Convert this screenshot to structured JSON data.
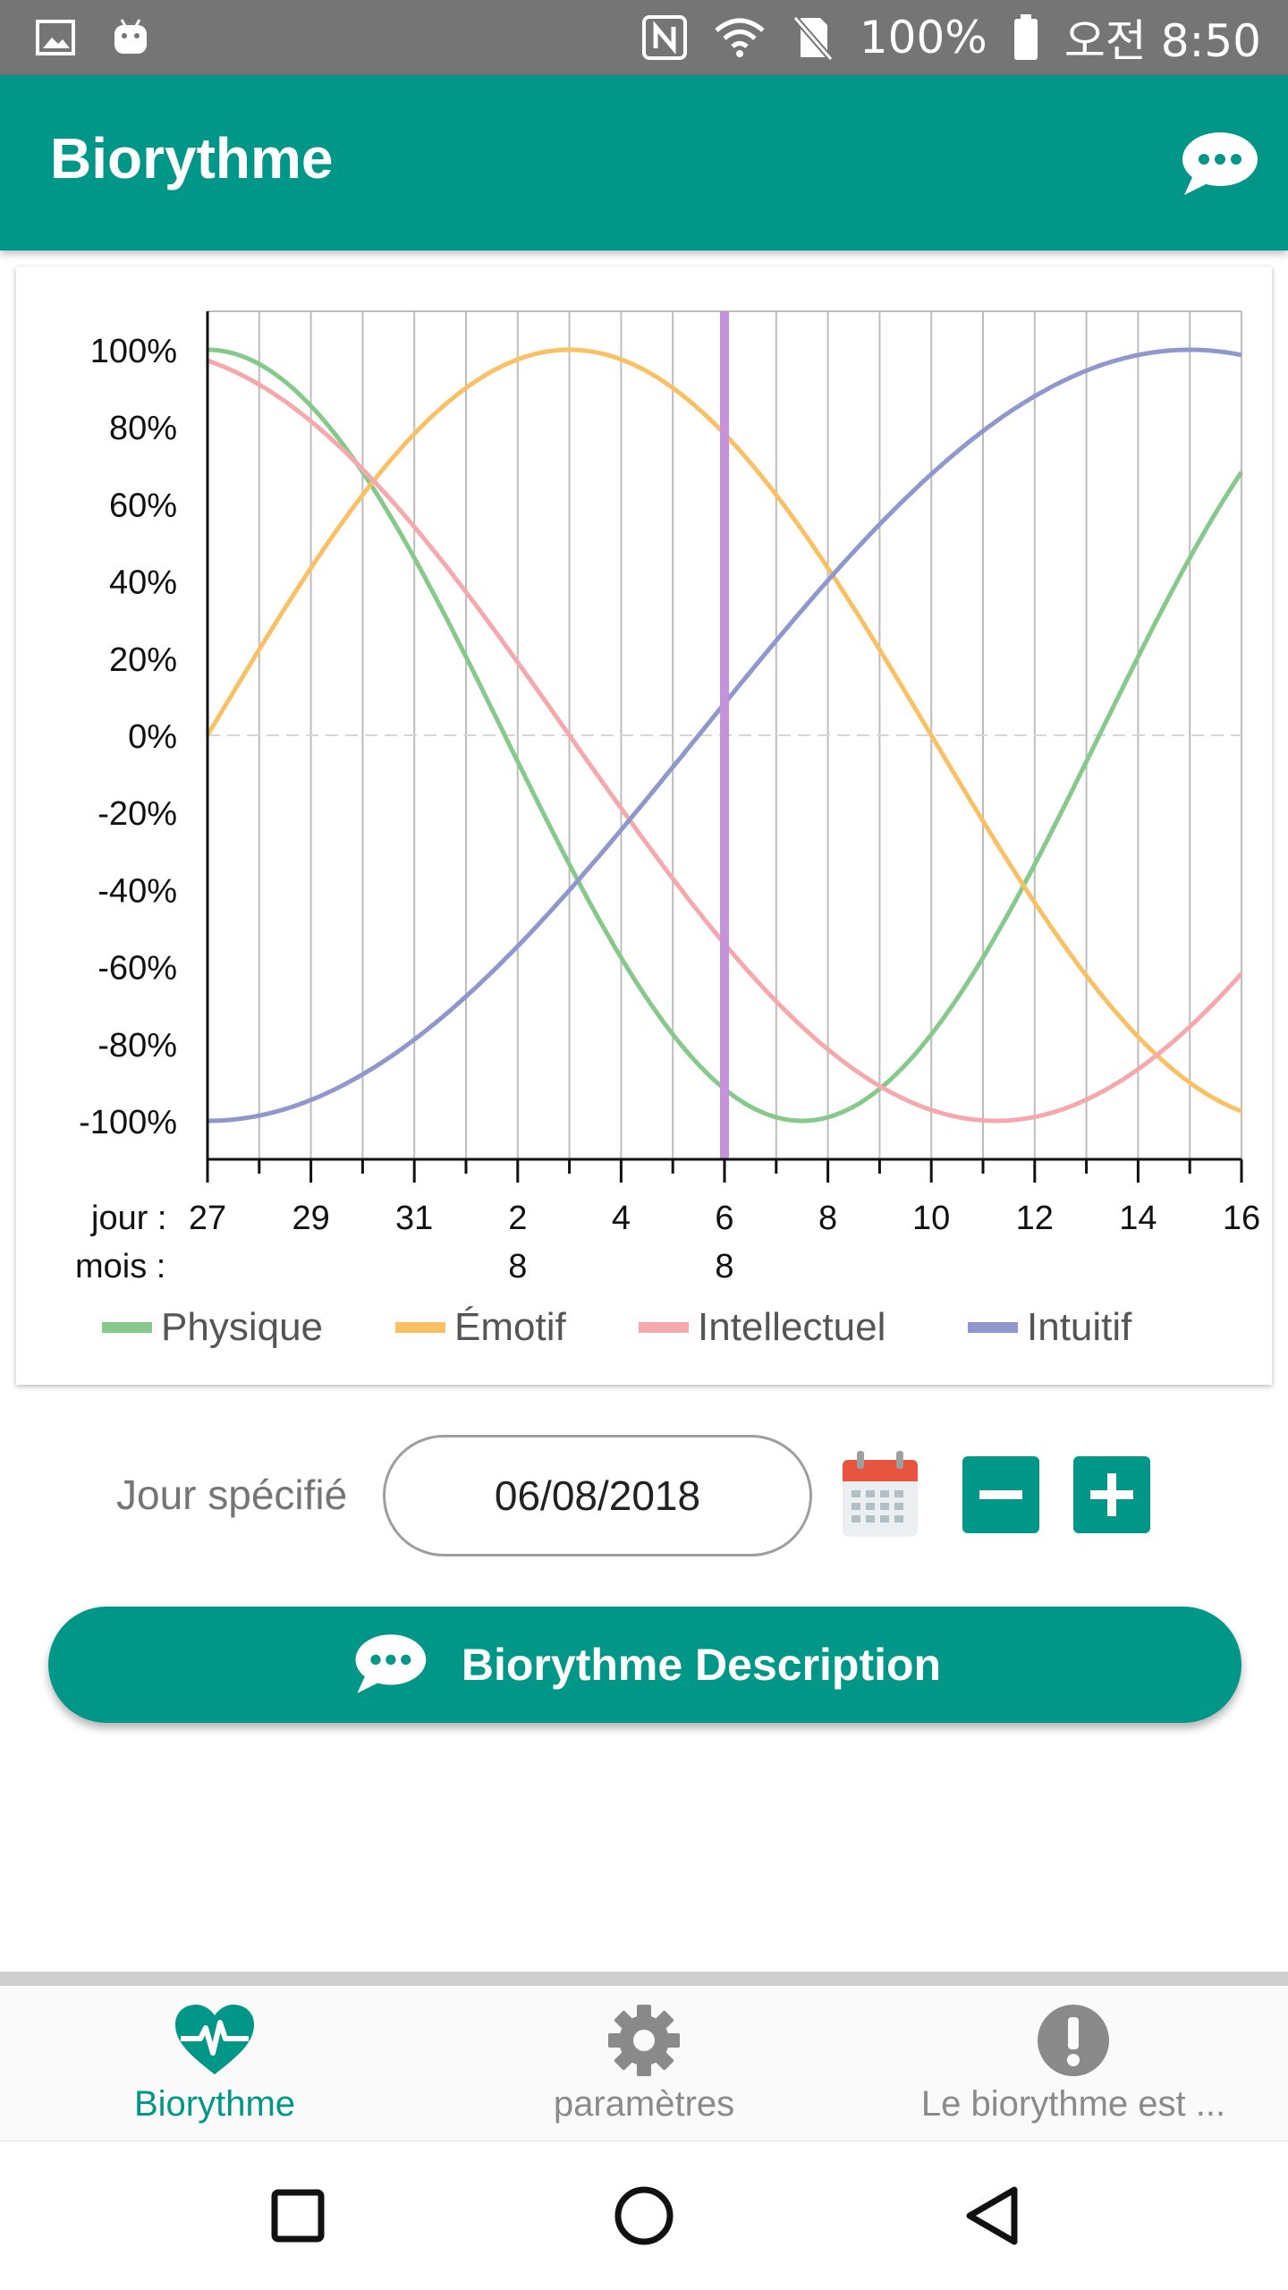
{
  "status_bar": {
    "battery": "100%",
    "time": "오전 8:50"
  },
  "app_bar": {
    "title": "Biorythme"
  },
  "chart_data": {
    "type": "line",
    "x": [
      27,
      28,
      29,
      30,
      31,
      1,
      2,
      3,
      4,
      5,
      6,
      7,
      8,
      9,
      10,
      11,
      12,
      13,
      14,
      15,
      16
    ],
    "x_tick_labels": [
      "27",
      "29",
      "31",
      "2",
      "4",
      "6",
      "8",
      "10",
      "12",
      "14",
      "16"
    ],
    "x_prefix_day": "jour :",
    "x_prefix_month": "mois :",
    "month_labels": [
      {
        "day": "2",
        "month": "8"
      },
      {
        "day": "6",
        "month": "8"
      }
    ],
    "y_ticks": [
      "100%",
      "80%",
      "60%",
      "40%",
      "20%",
      "0%",
      "-20%",
      "-40%",
      "-60%",
      "-80%",
      "-100%"
    ],
    "ylim": [
      -100,
      100
    ],
    "grid": "vertical",
    "marker_day": "6",
    "series": [
      {
        "name": "Physique",
        "color": "#86c98a",
        "period": 23,
        "phase_offset_days": 5.75
      },
      {
        "name": "Émotif",
        "color": "#f8c165",
        "period": 28,
        "phase_offset_days": 0
      },
      {
        "name": "Intellectuel",
        "color": "#f6a9ad",
        "period": 33,
        "phase_offset_days": 9.5
      },
      {
        "name": "Intuitif",
        "color": "#8e98cd",
        "period": 38,
        "phase_offset_days": -9.5
      }
    ],
    "legend_position": "bottom"
  },
  "day_selector": {
    "label": "Jour spécifié",
    "value": "06/08/2018"
  },
  "description_button": {
    "label": "Biorythme Description"
  },
  "bottom_nav": {
    "items": [
      {
        "label": "Biorythme",
        "icon": "heart-pulse-icon",
        "active": true
      },
      {
        "label": "paramètres",
        "icon": "gear-icon",
        "active": false
      },
      {
        "label": "Le biorythme est ...",
        "icon": "exclamation-icon",
        "active": false
      }
    ]
  },
  "colors": {
    "primary": "#009688",
    "status_bar": "#757575",
    "marker": "#c792dc"
  }
}
